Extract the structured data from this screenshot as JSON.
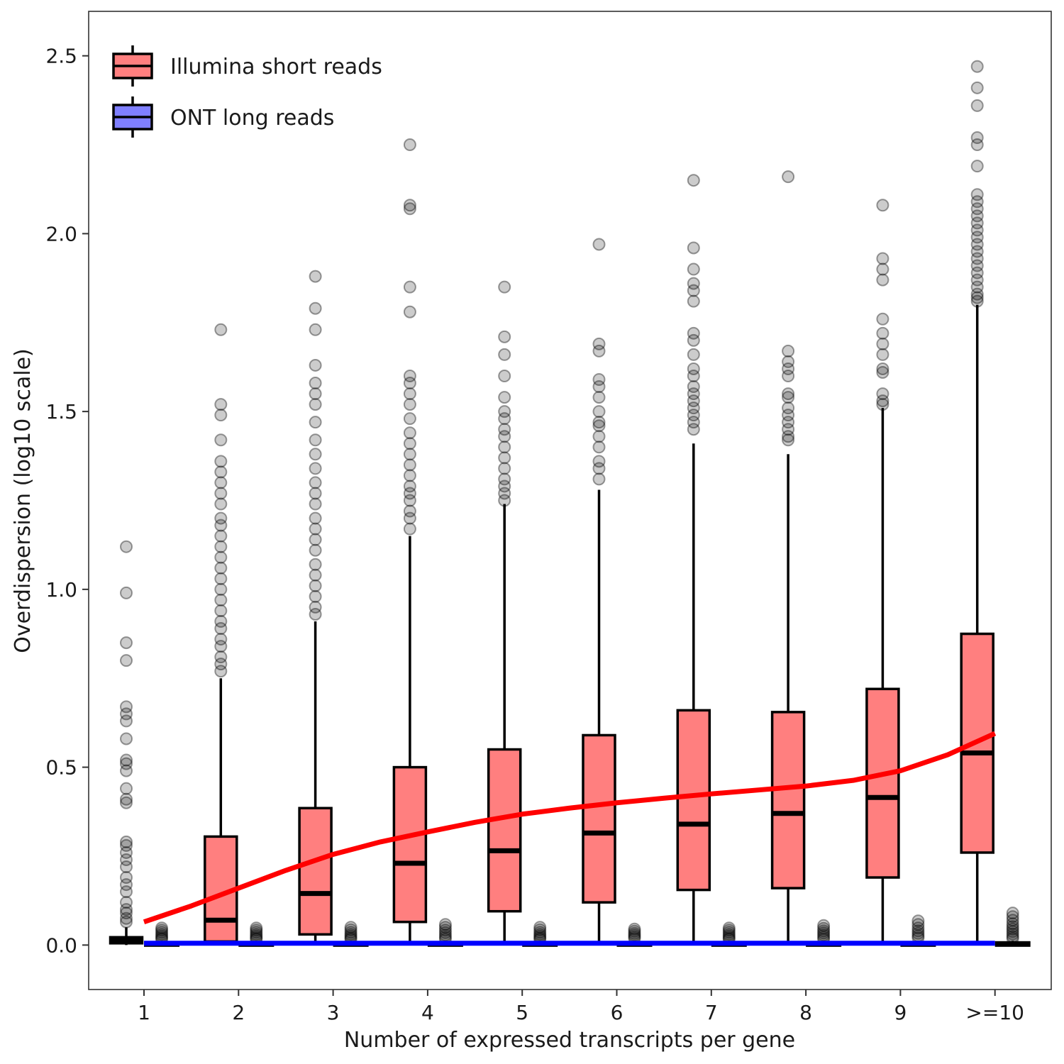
{
  "chart_data": {
    "type": "boxplot",
    "title": "",
    "xlabel": "Number of expressed transcripts per gene",
    "ylabel": "Overdispersion (log10 scale)",
    "ylim": [
      -0.125,
      2.625
    ],
    "y_ticks": [
      0.0,
      0.5,
      1.0,
      1.5,
      2.0,
      2.5
    ],
    "y_tick_labels": [
      "0.0",
      "0.5",
      "1.0",
      "1.5",
      "2.0",
      "2.5"
    ],
    "categories": [
      "1",
      "2",
      "3",
      "4",
      "5",
      "6",
      "7",
      "8",
      "9",
      ">=10"
    ],
    "grid": false,
    "legend_position": "top-left",
    "series": [
      {
        "name": "Illumina short reads",
        "color": "#ff7f7f",
        "boxes": [
          {
            "lower_whisker": 0.0,
            "q1": 0.005,
            "median": 0.012,
            "q3": 0.022,
            "upper_whisker": 0.05,
            "outliers": [
              1.12,
              0.99,
              0.85,
              0.8,
              0.67,
              0.65,
              0.63,
              0.58,
              0.52,
              0.51,
              0.49,
              0.44,
              0.41,
              0.4,
              0.29,
              0.28,
              0.26,
              0.24,
              0.22,
              0.19,
              0.17,
              0.15,
              0.12,
              0.1,
              0.09,
              0.075,
              0.065
            ]
          },
          {
            "lower_whisker": 0.0,
            "q1": 0.01,
            "median": 0.07,
            "q3": 0.305,
            "upper_whisker": 0.75,
            "outliers": [
              1.73,
              1.52,
              1.49,
              1.42,
              1.36,
              1.33,
              1.3,
              1.27,
              1.24,
              1.2,
              1.18,
              1.15,
              1.12,
              1.09,
              1.06,
              1.03,
              1.0,
              0.97,
              0.94,
              0.91,
              0.89,
              0.86,
              0.84,
              0.81,
              0.79,
              0.77
            ]
          },
          {
            "lower_whisker": 0.0,
            "q1": 0.03,
            "median": 0.145,
            "q3": 0.385,
            "upper_whisker": 0.91,
            "outliers": [
              1.88,
              1.79,
              1.73,
              1.63,
              1.58,
              1.55,
              1.52,
              1.47,
              1.42,
              1.38,
              1.34,
              1.3,
              1.27,
              1.24,
              1.2,
              1.17,
              1.14,
              1.11,
              1.07,
              1.04,
              1.01,
              0.98,
              0.95,
              0.93
            ]
          },
          {
            "lower_whisker": 0.0,
            "q1": 0.065,
            "median": 0.23,
            "q3": 0.5,
            "upper_whisker": 1.15,
            "outliers": [
              2.25,
              2.08,
              2.07,
              1.85,
              1.78,
              1.6,
              1.58,
              1.55,
              1.52,
              1.48,
              1.44,
              1.41,
              1.38,
              1.35,
              1.32,
              1.29,
              1.27,
              1.25,
              1.22,
              1.2,
              1.17
            ]
          },
          {
            "lower_whisker": 0.0,
            "q1": 0.095,
            "median": 0.265,
            "q3": 0.55,
            "upper_whisker": 1.24,
            "outliers": [
              1.85,
              1.71,
              1.66,
              1.6,
              1.54,
              1.5,
              1.48,
              1.45,
              1.43,
              1.4,
              1.37,
              1.34,
              1.31,
              1.29,
              1.27,
              1.25
            ]
          },
          {
            "lower_whisker": 0.0,
            "q1": 0.12,
            "median": 0.315,
            "q3": 0.59,
            "upper_whisker": 1.28,
            "outliers": [
              1.97,
              1.69,
              1.67,
              1.59,
              1.57,
              1.54,
              1.5,
              1.47,
              1.46,
              1.43,
              1.4,
              1.36,
              1.34,
              1.31
            ]
          },
          {
            "lower_whisker": 0.0,
            "q1": 0.155,
            "median": 0.34,
            "q3": 0.66,
            "upper_whisker": 1.41,
            "outliers": [
              2.15,
              1.96,
              1.9,
              1.86,
              1.84,
              1.81,
              1.72,
              1.7,
              1.66,
              1.62,
              1.6,
              1.57,
              1.55,
              1.53,
              1.51,
              1.49,
              1.47,
              1.45
            ]
          },
          {
            "lower_whisker": 0.0,
            "q1": 0.16,
            "median": 0.37,
            "q3": 0.655,
            "upper_whisker": 1.38,
            "outliers": [
              2.16,
              1.67,
              1.64,
              1.62,
              1.6,
              1.55,
              1.54,
              1.51,
              1.49,
              1.47,
              1.45,
              1.43,
              1.42
            ]
          },
          {
            "lower_whisker": 0.0,
            "q1": 0.19,
            "median": 0.415,
            "q3": 0.72,
            "upper_whisker": 1.51,
            "outliers": [
              2.08,
              1.93,
              1.9,
              1.87,
              1.76,
              1.72,
              1.69,
              1.66,
              1.62,
              1.61,
              1.55,
              1.53,
              1.52
            ]
          },
          {
            "lower_whisker": 0.0,
            "q1": 0.26,
            "median": 0.54,
            "q3": 0.875,
            "upper_whisker": 1.8,
            "outliers": [
              2.47,
              2.41,
              2.36,
              2.27,
              2.25,
              2.19,
              2.11,
              2.09,
              2.07,
              2.05,
              2.03,
              2.01,
              1.99,
              1.97,
              1.95,
              1.93,
              1.91,
              1.89,
              1.87,
              1.85,
              1.83,
              1.82,
              1.81
            ]
          }
        ]
      },
      {
        "name": "ONT long reads",
        "color": "#7f7fff",
        "boxes": [
          {
            "lower_whisker": 0.0,
            "q1": 0.0,
            "median": 0.003,
            "q3": 0.006,
            "upper_whisker": 0.012,
            "outliers": [
              0.048,
              0.042,
              0.036,
              0.03,
              0.025,
              0.02,
              0.016
            ]
          },
          {
            "lower_whisker": 0.0,
            "q1": 0.0,
            "median": 0.003,
            "q3": 0.006,
            "upper_whisker": 0.012,
            "outliers": [
              0.048,
              0.042,
              0.036,
              0.03,
              0.025,
              0.02,
              0.016
            ]
          },
          {
            "lower_whisker": 0.0,
            "q1": 0.0,
            "median": 0.003,
            "q3": 0.006,
            "upper_whisker": 0.012,
            "outliers": [
              0.05,
              0.043,
              0.036,
              0.03,
              0.025,
              0.02,
              0.016
            ]
          },
          {
            "lower_whisker": 0.0,
            "q1": 0.0,
            "median": 0.003,
            "q3": 0.006,
            "upper_whisker": 0.012,
            "outliers": [
              0.058,
              0.05,
              0.042,
              0.035,
              0.028,
              0.022,
              0.016
            ]
          },
          {
            "lower_whisker": 0.0,
            "q1": 0.0,
            "median": 0.003,
            "q3": 0.006,
            "upper_whisker": 0.012,
            "outliers": [
              0.05,
              0.043,
              0.036,
              0.03,
              0.025,
              0.02,
              0.016
            ]
          },
          {
            "lower_whisker": 0.0,
            "q1": 0.0,
            "median": 0.003,
            "q3": 0.006,
            "upper_whisker": 0.012,
            "outliers": [
              0.045,
              0.039,
              0.033,
              0.028,
              0.023,
              0.018
            ]
          },
          {
            "lower_whisker": 0.0,
            "q1": 0.0,
            "median": 0.003,
            "q3": 0.006,
            "upper_whisker": 0.012,
            "outliers": [
              0.048,
              0.042,
              0.036,
              0.03,
              0.025,
              0.02,
              0.016
            ]
          },
          {
            "lower_whisker": 0.0,
            "q1": 0.0,
            "median": 0.003,
            "q3": 0.006,
            "upper_whisker": 0.012,
            "outliers": [
              0.055,
              0.047,
              0.04,
              0.034,
              0.028,
              0.022,
              0.016
            ]
          },
          {
            "lower_whisker": 0.0,
            "q1": 0.0,
            "median": 0.003,
            "q3": 0.006,
            "upper_whisker": 0.012,
            "outliers": [
              0.068,
              0.058,
              0.048,
              0.04,
              0.033,
              0.026,
              0.02
            ]
          },
          {
            "lower_whisker": 0.0,
            "q1": 0.0,
            "median": 0.003,
            "q3": 0.006,
            "upper_whisker": 0.012,
            "outliers": [
              0.09,
              0.08,
              0.07,
              0.06,
              0.052,
              0.045,
              0.038,
              0.031,
              0.024,
              0.018
            ]
          }
        ]
      }
    ],
    "trend_lines": [
      {
        "series": "Illumina short reads",
        "color": "#ff0000",
        "x": [
          1,
          1.5,
          2,
          2.5,
          3,
          3.5,
          4,
          4.5,
          5,
          5.5,
          6,
          6.5,
          7,
          7.5,
          8,
          8.5,
          9,
          9.5,
          10
        ],
        "y": [
          0.065,
          0.11,
          0.16,
          0.21,
          0.255,
          0.29,
          0.318,
          0.345,
          0.368,
          0.385,
          0.4,
          0.413,
          0.425,
          0.436,
          0.447,
          0.463,
          0.49,
          0.535,
          0.595
        ]
      },
      {
        "series": "ONT long reads",
        "color": "#0000ff",
        "x": [
          1,
          10
        ],
        "y": [
          0.005,
          0.005
        ]
      }
    ]
  }
}
